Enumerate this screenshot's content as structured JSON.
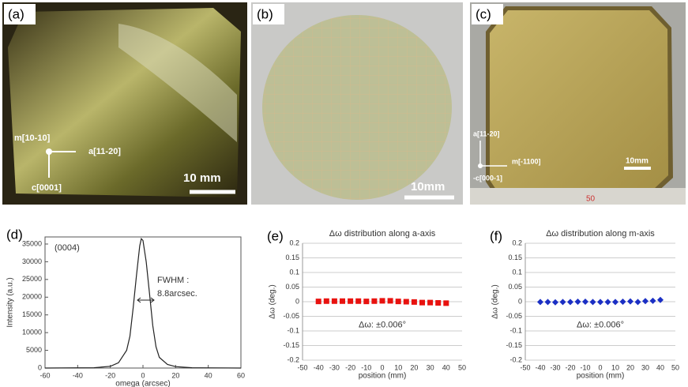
{
  "panels": [
    {
      "label": "(a)",
      "texts": [
        "m[10-10]",
        "a[11-20]",
        "c[0001]",
        "10 mm"
      ]
    },
    {
      "label": "(b)",
      "texts": [
        "10mm"
      ]
    },
    {
      "label": "(c)",
      "texts": [
        "a[11-20]",
        "m[-1100]",
        "-c[000-1]",
        "10mm",
        "50"
      ]
    }
  ],
  "chart_data": [
    {
      "type": "line",
      "panel_label": "(d)",
      "xlabel": "omega (arcsec)",
      "ylabel": "Intensity (a.u.)",
      "annotations": [
        "(0004)",
        "FWHM :",
        "8.8arcsec."
      ],
      "x": [
        -60,
        -30,
        -20,
        -15,
        -10,
        -8,
        -6,
        -4,
        -2,
        -1,
        0,
        2,
        4,
        6,
        8,
        10,
        15,
        20,
        30,
        60
      ],
      "values": [
        0,
        100,
        500,
        1500,
        5000,
        9000,
        17000,
        26000,
        34500,
        36500,
        36000,
        30000,
        21000,
        12000,
        6000,
        3000,
        1000,
        400,
        100,
        0
      ],
      "color": "#222222",
      "xlim": [
        -60,
        60
      ],
      "xticks": [
        -60,
        -40,
        -20,
        0,
        20,
        40,
        60
      ],
      "ylim": [
        0,
        37000
      ],
      "yticks": [
        0,
        5000,
        10000,
        15000,
        20000,
        25000,
        30000,
        35000
      ]
    },
    {
      "type": "scatter",
      "panel_label": "(e)",
      "title": "Δω distribution along a-axis",
      "xlabel": "position (mm)",
      "ylabel": "Δω (deg.)",
      "annotations": [
        "Δω: ±0.006°"
      ],
      "marker": "square",
      "color": "#e8120f",
      "grid": true,
      "x": [
        -40,
        -35,
        -30,
        -25,
        -20,
        -15,
        -10,
        -5,
        0,
        5,
        10,
        15,
        20,
        25,
        30,
        35,
        40
      ],
      "values": [
        0.001,
        0.002,
        0.002,
        0.002,
        0.002,
        0.002,
        0.001,
        0.002,
        0.003,
        0.003,
        0.001,
        0.0,
        -0.001,
        -0.003,
        -0.003,
        -0.004,
        -0.005
      ],
      "xlim": [
        -50,
        50
      ],
      "xticks": [
        -50,
        -40,
        -30,
        -20,
        -10,
        0,
        10,
        20,
        30,
        40,
        50
      ],
      "ylim": [
        -0.2,
        0.2
      ],
      "yticks": [
        -0.2,
        -0.15,
        -0.1,
        -0.05,
        0,
        0.05,
        0.1,
        0.15,
        0.2
      ]
    },
    {
      "type": "scatter",
      "panel_label": "(f)",
      "title": "Δω distribution along m-axis",
      "xlabel": "position (mm)",
      "ylabel": "Δω (deg.)",
      "annotations": [
        "Δω: ±0.006°"
      ],
      "marker": "diamond",
      "color": "#1b2fc4",
      "grid": true,
      "x": [
        -40,
        -35,
        -30,
        -25,
        -20,
        -15,
        -10,
        -5,
        0,
        5,
        10,
        15,
        20,
        25,
        30,
        35,
        40
      ],
      "values": [
        -0.001,
        -0.001,
        -0.002,
        -0.001,
        -0.001,
        0.0,
        0.0,
        -0.001,
        -0.001,
        -0.001,
        -0.001,
        0.0,
        0.001,
        -0.001,
        0.002,
        0.003,
        0.006
      ],
      "xlim": [
        -50,
        50
      ],
      "xticks": [
        -50,
        -40,
        -30,
        -20,
        -10,
        0,
        10,
        20,
        30,
        40,
        50
      ],
      "ylim": [
        -0.2,
        0.2
      ],
      "yticks": [
        -0.2,
        -0.15,
        -0.1,
        -0.05,
        0,
        0.05,
        0.1,
        0.15,
        0.2
      ]
    }
  ]
}
